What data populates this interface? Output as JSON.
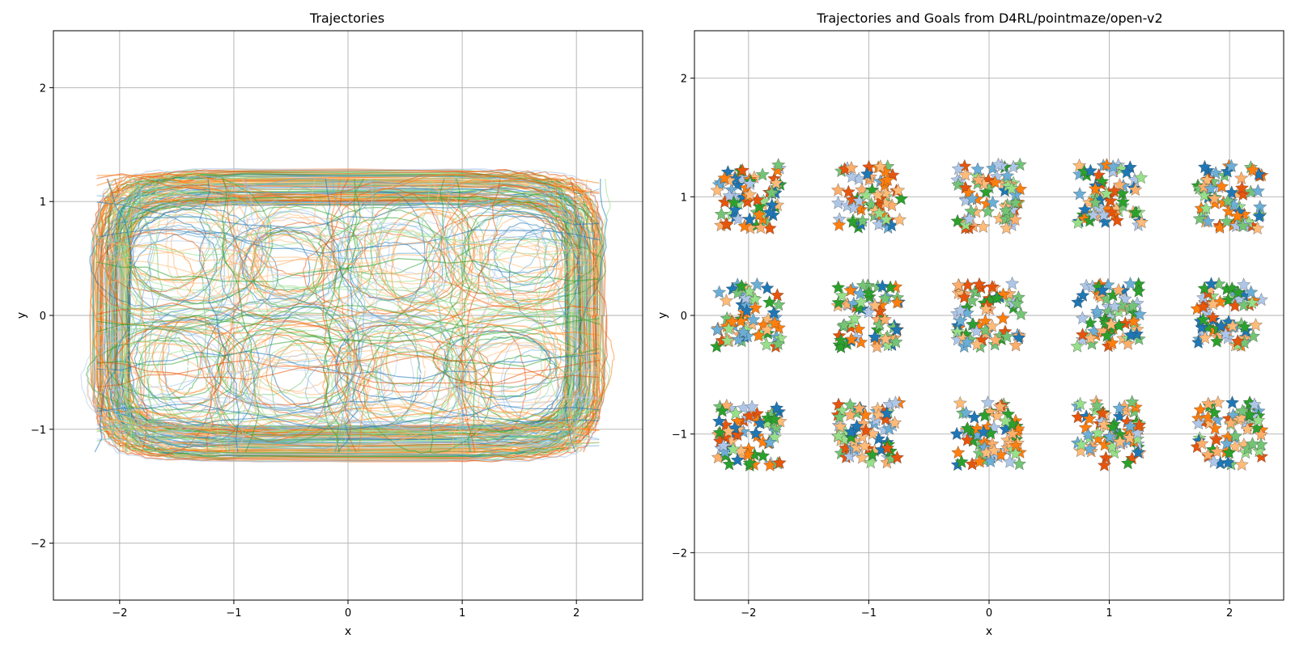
{
  "chart_data": [
    {
      "type": "line",
      "title": "Trajectories",
      "xlabel": "x",
      "ylabel": "y",
      "xlim": [
        -2.58,
        2.58
      ],
      "ylim": [
        -2.5,
        2.5
      ],
      "xticks": [
        -2,
        -1,
        0,
        1,
        2
      ],
      "yticks": [
        -2,
        -1,
        0,
        1,
        2
      ],
      "xtick_labels": [
        "−2",
        "−1",
        "0",
        "1",
        "2"
      ],
      "ytick_labels": [
        "−2",
        "−1",
        "0",
        "1",
        "2"
      ],
      "grid": true,
      "extent": {
        "x": [
          -2.3,
          2.3
        ],
        "y": [
          -1.3,
          1.3
        ]
      },
      "loop_centers": [
        {
          "x": -1.5,
          "y": 0.5
        },
        {
          "x": -0.5,
          "y": 0.5
        },
        {
          "x": 0.5,
          "y": 0.5
        },
        {
          "x": 1.5,
          "y": 0.5
        },
        {
          "x": -1.5,
          "y": -0.5
        },
        {
          "x": -0.5,
          "y": -0.5
        },
        {
          "x": 0.5,
          "y": -0.5
        },
        {
          "x": 1.5,
          "y": -0.5
        }
      ],
      "colors": [
        "#1f77b4",
        "#ff7f0e",
        "#2ca02c",
        "#aec7e8",
        "#ffbb78",
        "#98df8a",
        "#e6550d",
        "#6baed6",
        "#fdae6b",
        "#74c476"
      ]
    },
    {
      "type": "scatter",
      "marker": "star",
      "title": "Trajectories and Goals from D4RL/pointmaze/open-v2",
      "xlabel": "x",
      "ylabel": "y",
      "xlim": [
        -2.45,
        2.45
      ],
      "ylim": [
        -2.4,
        2.4
      ],
      "xticks": [
        -2,
        -1,
        0,
        1,
        2
      ],
      "yticks": [
        -2,
        -1,
        0,
        1,
        2
      ],
      "xtick_labels": [
        "−2",
        "−1",
        "0",
        "1",
        "2"
      ],
      "ytick_labels": [
        "−2",
        "−1",
        "0",
        "1",
        "2"
      ],
      "grid": true,
      "goal_clusters": [
        {
          "x": -2,
          "y": 1
        },
        {
          "x": -1,
          "y": 1
        },
        {
          "x": 0,
          "y": 1
        },
        {
          "x": 1,
          "y": 1
        },
        {
          "x": 2,
          "y": 1
        },
        {
          "x": -2,
          "y": 0
        },
        {
          "x": -1,
          "y": 0
        },
        {
          "x": 0,
          "y": 0
        },
        {
          "x": 1,
          "y": 0
        },
        {
          "x": 2,
          "y": 0
        },
        {
          "x": -2,
          "y": -1
        },
        {
          "x": -1,
          "y": -1
        },
        {
          "x": 0,
          "y": -1
        },
        {
          "x": 1,
          "y": -1
        },
        {
          "x": 2,
          "y": -1
        }
      ],
      "cluster_half_width": 0.27,
      "colors": [
        "#1f77b4",
        "#ff7f0e",
        "#2ca02c",
        "#aec7e8",
        "#ffbb78",
        "#98df8a",
        "#e6550d",
        "#6baed6",
        "#fdae6b",
        "#74c476"
      ]
    }
  ]
}
